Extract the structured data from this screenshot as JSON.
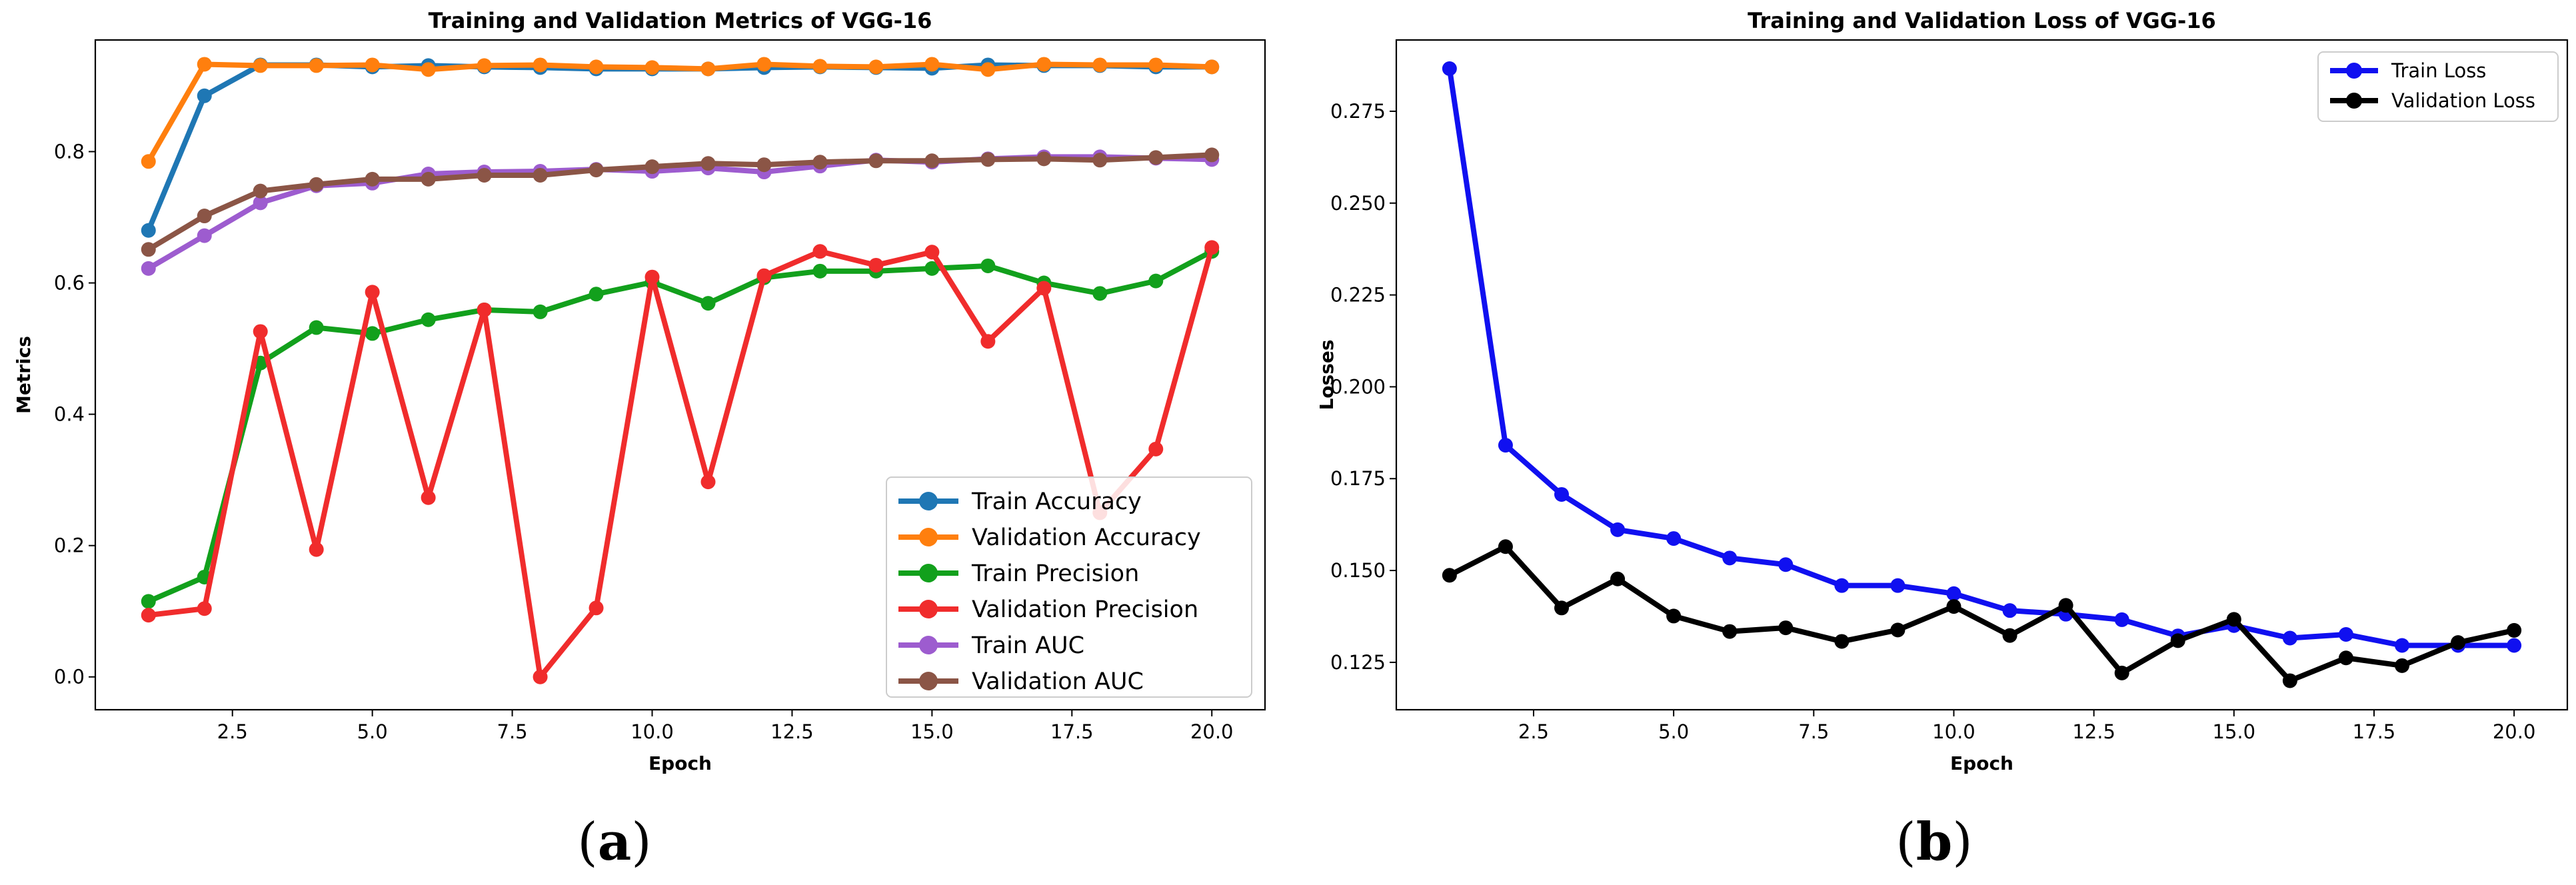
{
  "chart_data": [
    {
      "type": "line",
      "title": "Training and Validation Metrics of VGG-16",
      "xlabel": "Epoch",
      "ylabel": "Metrics",
      "xlim": [
        0.05,
        20.95
      ],
      "ylim": [
        -0.05,
        0.97
      ],
      "xticks": [
        2.5,
        5.0,
        7.5,
        10.0,
        12.5,
        15.0,
        17.5,
        20.0
      ],
      "xtick_labels": [
        "2.5",
        "5.0",
        "7.5",
        "10.0",
        "12.5",
        "15.0",
        "17.5",
        "20.0"
      ],
      "yticks": [
        0.0,
        0.2,
        0.4,
        0.6,
        0.8
      ],
      "ytick_labels": [
        "0.0",
        "0.2",
        "0.4",
        "0.6",
        "0.8"
      ],
      "legend_position": "bottom-right",
      "panel_label": {
        "open": "(",
        "letter": "a",
        "close": ")"
      },
      "x": [
        1,
        2,
        3,
        4,
        5,
        6,
        7,
        8,
        9,
        10,
        11,
        12,
        13,
        14,
        15,
        16,
        17,
        18,
        19,
        20
      ],
      "series": [
        {
          "name": "Train Accuracy",
          "color": "#1f77b4",
          "values": [
            0.68,
            0.885,
            0.932,
            0.932,
            0.929,
            0.931,
            0.929,
            0.928,
            0.926,
            0.926,
            0.926,
            0.928,
            0.929,
            0.928,
            0.927,
            0.932,
            0.931,
            0.931,
            0.929,
            0.929
          ]
        },
        {
          "name": "Validation Accuracy",
          "color": "#ff7f0e",
          "values": [
            0.785,
            0.933,
            0.931,
            0.931,
            0.932,
            0.925,
            0.931,
            0.932,
            0.929,
            0.928,
            0.926,
            0.933,
            0.93,
            0.929,
            0.933,
            0.925,
            0.933,
            0.932,
            0.932,
            0.929
          ]
        },
        {
          "name": "Train Precision",
          "color": "#12a01c",
          "values": [
            0.115,
            0.152,
            0.478,
            0.532,
            0.523,
            0.544,
            0.559,
            0.556,
            0.583,
            0.601,
            0.569,
            0.608,
            0.618,
            0.618,
            0.622,
            0.626,
            0.6,
            0.584,
            0.603,
            0.648
          ]
        },
        {
          "name": "Validation Precision",
          "color": "#f02c2c",
          "values": [
            0.094,
            0.104,
            0.526,
            0.194,
            0.586,
            0.273,
            0.559,
            0.0,
            0.105,
            0.609,
            0.297,
            0.611,
            0.648,
            0.627,
            0.647,
            0.511,
            0.592,
            0.25,
            0.347,
            0.654
          ]
        },
        {
          "name": "Train AUC",
          "color": "#9d5ccf",
          "values": [
            0.622,
            0.672,
            0.722,
            0.748,
            0.752,
            0.766,
            0.769,
            0.77,
            0.773,
            0.77,
            0.775,
            0.769,
            0.778,
            0.787,
            0.784,
            0.789,
            0.792,
            0.792,
            0.79,
            0.788
          ]
        },
        {
          "name": "Validation AUC",
          "color": "#8b5546",
          "values": [
            0.651,
            0.702,
            0.74,
            0.75,
            0.758,
            0.758,
            0.764,
            0.764,
            0.772,
            0.777,
            0.782,
            0.78,
            0.784,
            0.786,
            0.786,
            0.788,
            0.789,
            0.787,
            0.791,
            0.795
          ]
        }
      ]
    },
    {
      "type": "line",
      "title": "Training and Validation Loss of VGG-16",
      "xlabel": "Epoch",
      "ylabel": "Losses",
      "xlim": [
        0.05,
        20.95
      ],
      "ylim": [
        0.1121,
        0.2944
      ],
      "xticks": [
        2.5,
        5.0,
        7.5,
        10.0,
        12.5,
        15.0,
        17.5,
        20.0
      ],
      "xtick_labels": [
        "2.5",
        "5.0",
        "7.5",
        "10.0",
        "12.5",
        "15.0",
        "17.5",
        "20.0"
      ],
      "yticks": [
        0.125,
        0.15,
        0.175,
        0.2,
        0.225,
        0.25,
        0.275
      ],
      "ytick_labels": [
        "0.125",
        "0.150",
        "0.175",
        "0.200",
        "0.225",
        "0.250",
        "0.275"
      ],
      "legend_position": "top-right",
      "panel_label": {
        "open": "(",
        "letter": "b",
        "close": ")"
      },
      "x": [
        1,
        2,
        3,
        4,
        5,
        6,
        7,
        8,
        9,
        10,
        11,
        12,
        13,
        14,
        15,
        16,
        17,
        18,
        19,
        20
      ],
      "series": [
        {
          "name": "Train Loss",
          "color": "#1010f0",
          "values": [
            0.2866,
            0.1841,
            0.1707,
            0.1611,
            0.1587,
            0.1534,
            0.1516,
            0.1459,
            0.1459,
            0.1437,
            0.1391,
            0.1381,
            0.1366,
            0.1322,
            0.135,
            0.1316,
            0.1326,
            0.1296,
            0.1296,
            0.1296
          ]
        },
        {
          "name": "Validation Loss",
          "color": "#000000",
          "values": [
            0.1487,
            0.1565,
            0.1398,
            0.1477,
            0.1376,
            0.1334,
            0.1344,
            0.1307,
            0.1338,
            0.1402,
            0.1323,
            0.1405,
            0.1221,
            0.1309,
            0.1367,
            0.12,
            0.1262,
            0.1241,
            0.1304,
            0.1337
          ]
        }
      ]
    }
  ]
}
